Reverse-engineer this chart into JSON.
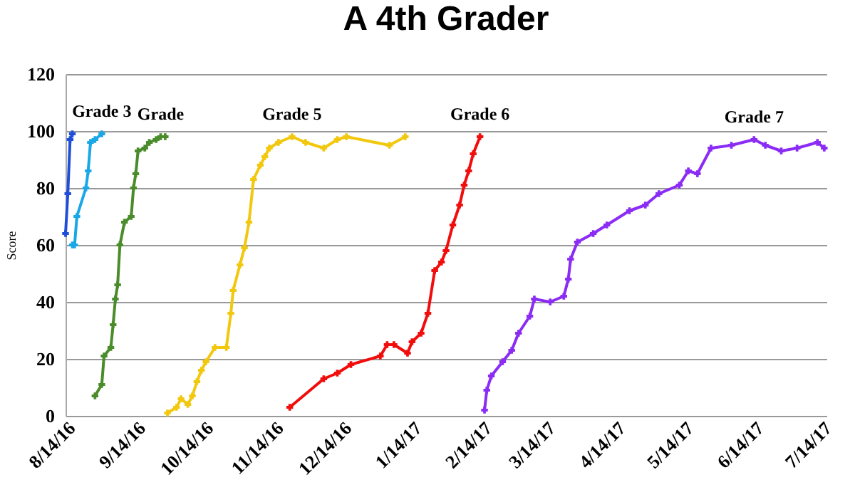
{
  "chart_data": {
    "type": "line",
    "title": "A 4th Grader",
    "ylabel": "Score",
    "xlim": [
      "2016-08-14",
      "2017-07-16"
    ],
    "xticks": [
      {
        "value": "2016-08-14",
        "label": "8/14/16"
      },
      {
        "value": "2016-09-14",
        "label": "9/14/16"
      },
      {
        "value": "2016-10-14",
        "label": "10/14/16"
      },
      {
        "value": "2016-11-14",
        "label": "11/14/16"
      },
      {
        "value": "2016-12-14",
        "label": "12/14/16"
      },
      {
        "value": "2017-01-14",
        "label": "1/14/17"
      },
      {
        "value": "2017-02-14",
        "label": "2/14/17"
      },
      {
        "value": "2017-03-14",
        "label": "3/14/17"
      },
      {
        "value": "2017-04-14",
        "label": "4/14/17"
      },
      {
        "value": "2017-05-14",
        "label": "5/14/17"
      },
      {
        "value": "2017-06-14",
        "label": "6/14/17"
      },
      {
        "value": "2017-07-14",
        "label": "7/14/17"
      }
    ],
    "ylim": [
      0,
      120
    ],
    "yticks": [
      0,
      20,
      40,
      60,
      80,
      100,
      120
    ],
    "grid": "y",
    "marker": "cross",
    "series": [
      {
        "color": "#1f4fd8",
        "x": [
          "2016-08-14",
          "2016-08-15",
          "2016-08-16",
          "2016-08-17"
        ],
        "values": [
          64,
          78,
          97,
          99
        ]
      },
      {
        "name": "Grade 3",
        "color": "#1aa7e8",
        "x": [
          "2016-08-17",
          "2016-08-18",
          "2016-08-19",
          "2016-08-23",
          "2016-08-24",
          "2016-08-25",
          "2016-08-27",
          "2016-08-30"
        ],
        "values": [
          60,
          60,
          70,
          80,
          86,
          96,
          97,
          99
        ]
      },
      {
        "name": "Grade",
        "color": "#4a8c2a",
        "x": [
          "2016-08-27",
          "2016-08-30",
          "2016-08-31",
          "2016-09-03",
          "2016-09-04",
          "2016-09-05",
          "2016-09-06",
          "2016-09-07",
          "2016-09-09",
          "2016-09-12",
          "2016-09-13",
          "2016-09-14",
          "2016-09-15",
          "2016-09-18",
          "2016-09-20",
          "2016-09-23",
          "2016-09-25",
          "2016-09-27"
        ],
        "values": [
          7,
          11,
          21,
          24,
          32,
          41,
          46,
          60,
          68,
          70,
          80,
          85,
          93,
          94,
          96,
          97,
          98,
          98
        ]
      },
      {
        "name": "Grade 5",
        "color": "#f2c80f",
        "x": [
          "2016-09-28",
          "2016-10-02",
          "2016-10-04",
          "2016-10-07",
          "2016-10-09",
          "2016-10-11",
          "2016-10-13",
          "2016-10-15",
          "2016-10-19",
          "2016-10-24",
          "2016-10-26",
          "2016-10-27",
          "2016-10-30",
          "2016-11-01",
          "2016-11-03",
          "2016-11-05",
          "2016-11-08",
          "2016-11-10",
          "2016-11-12",
          "2016-11-16",
          "2016-11-22",
          "2016-11-28",
          "2016-12-06",
          "2016-12-12",
          "2016-12-16",
          "2017-01-04",
          "2017-01-11"
        ],
        "values": [
          1,
          3,
          6,
          4,
          7,
          12,
          16,
          19,
          24,
          24,
          36,
          44,
          53,
          59,
          68,
          83,
          88,
          91,
          94,
          96,
          98,
          96,
          94,
          97,
          98,
          95,
          98
        ]
      },
      {
        "name": "Grade 6",
        "color": "#f20d0d",
        "x": [
          "2016-11-21",
          "2016-12-06",
          "2016-12-12",
          "2016-12-18",
          "2016-12-31",
          "2017-01-03",
          "2017-01-06",
          "2017-01-12",
          "2017-01-14",
          "2017-01-18",
          "2017-01-21",
          "2017-01-24",
          "2017-01-27",
          "2017-01-29",
          "2017-02-01",
          "2017-02-04",
          "2017-02-06",
          "2017-02-08",
          "2017-02-10",
          "2017-02-13"
        ],
        "values": [
          3,
          13,
          15,
          18,
          21,
          25,
          25,
          22,
          26,
          29,
          36,
          51,
          54,
          58,
          67,
          74,
          81,
          86,
          92,
          98
        ]
      },
      {
        "name": "Grade 7",
        "color": "#8b2cf5",
        "x": [
          "2017-02-15",
          "2017-02-16",
          "2017-02-18",
          "2017-02-23",
          "2017-02-27",
          "2017-03-02",
          "2017-03-07",
          "2017-03-09",
          "2017-03-16",
          "2017-03-22",
          "2017-03-24",
          "2017-03-25",
          "2017-03-28",
          "2017-04-04",
          "2017-04-10",
          "2017-04-20",
          "2017-04-27",
          "2017-05-03",
          "2017-05-12",
          "2017-05-16",
          "2017-05-20",
          "2017-05-26",
          "2017-06-04",
          "2017-06-14",
          "2017-06-19",
          "2017-06-26",
          "2017-07-03",
          "2017-07-12",
          "2017-07-15"
        ],
        "values": [
          2,
          9,
          14,
          19,
          23,
          29,
          35,
          41,
          40,
          42,
          48,
          55,
          61,
          64,
          67,
          72,
          74,
          78,
          81,
          86,
          85,
          94,
          95,
          97,
          95,
          93,
          94,
          96,
          94
        ]
      }
    ]
  }
}
